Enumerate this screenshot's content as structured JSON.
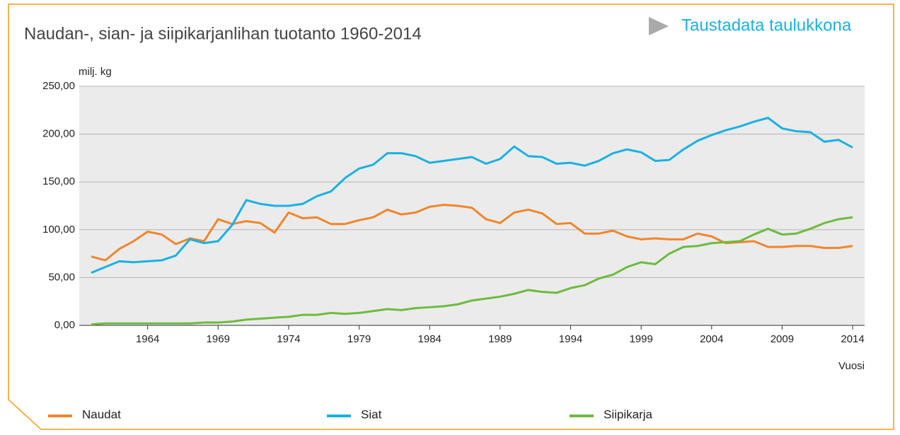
{
  "link": "Taustadata taulukkona",
  "chart_data": {
    "type": "line",
    "title": "Naudan-, sian- ja siipikarjanlihan tuotanto 1960-2014",
    "ylabel": "milj. kg",
    "xlabel": "Vuosi",
    "x": [
      1960,
      1961,
      1962,
      1963,
      1964,
      1965,
      1966,
      1967,
      1968,
      1969,
      1970,
      1971,
      1972,
      1973,
      1974,
      1975,
      1976,
      1977,
      1978,
      1979,
      1980,
      1981,
      1982,
      1983,
      1984,
      1985,
      1986,
      1987,
      1988,
      1989,
      1990,
      1991,
      1992,
      1993,
      1994,
      1995,
      1996,
      1997,
      1998,
      1999,
      2000,
      2001,
      2002,
      2003,
      2004,
      2005,
      2006,
      2007,
      2008,
      2009,
      2010,
      2011,
      2012,
      2013,
      2014
    ],
    "series": [
      {
        "name": "Naudat",
        "color": "#f0862c",
        "values": [
          72,
          68,
          80,
          88,
          98,
          95,
          85,
          91,
          88,
          111,
          106,
          109,
          107,
          97,
          118,
          112,
          113,
          106,
          106,
          110,
          113,
          121,
          116,
          118,
          124,
          126,
          125,
          123,
          111,
          107,
          118,
          121,
          117,
          106,
          107,
          96,
          96,
          99,
          93,
          90,
          91,
          90,
          90,
          96,
          93,
          86,
          87,
          88,
          82,
          82,
          83,
          83,
          81,
          81,
          83
        ]
      },
      {
        "name": "Siat",
        "color": "#1ab1e2",
        "values": [
          55,
          61,
          67,
          66,
          67,
          68,
          73,
          90,
          86,
          88,
          105,
          131,
          127,
          125,
          125,
          127,
          135,
          140,
          154,
          164,
          168,
          180,
          180,
          177,
          170,
          172,
          174,
          176,
          169,
          174,
          187,
          177,
          176,
          169,
          170,
          167,
          172,
          180,
          184,
          181,
          172,
          173,
          184,
          193,
          199,
          204,
          208,
          213,
          217,
          206,
          203,
          202,
          192,
          194,
          186
        ]
      },
      {
        "name": "Siipikarja",
        "color": "#6dbb3f",
        "values": [
          1,
          2,
          2,
          2,
          2,
          2,
          2,
          2,
          3,
          3,
          4,
          6,
          7,
          8,
          9,
          11,
          11,
          13,
          12,
          13,
          15,
          17,
          16,
          18,
          19,
          20,
          22,
          26,
          28,
          30,
          33,
          37,
          35,
          34,
          39,
          42,
          49,
          53,
          61,
          66,
          64,
          75,
          82,
          83,
          86,
          87,
          88,
          95,
          101,
          95,
          96,
          101,
          107,
          111,
          113
        ]
      }
    ],
    "xlim": [
      1959.15,
      2014.85
    ],
    "xticks": [
      1964,
      1969,
      1974,
      1979,
      1984,
      1989,
      1994,
      1999,
      2004,
      2009,
      2014
    ],
    "ylim": [
      0,
      250
    ],
    "yticks": [
      {
        "value": 0,
        "label": "0,00"
      },
      {
        "value": 50,
        "label": "50,00"
      },
      {
        "value": 100,
        "label": "100,00"
      },
      {
        "value": 150,
        "label": "150,00"
      },
      {
        "value": 200,
        "label": "200,00"
      },
      {
        "value": 250,
        "label": "250,00"
      }
    ],
    "grid": true
  }
}
